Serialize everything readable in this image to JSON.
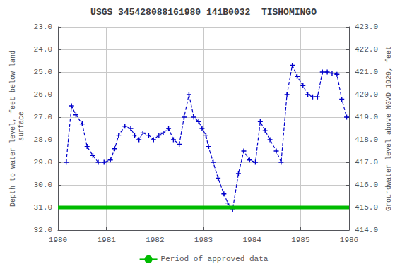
{
  "chart_data": {
    "type": "line",
    "title": "USGS 345428088161980 141B0032  TISHOMINGO",
    "y_label": "Depth to water level, feet below land\n surface",
    "y2_label": "Groundwater level above NGVD 1929, feet",
    "x": [
      1980.17,
      1980.28,
      1980.37,
      1980.5,
      1980.6,
      1980.72,
      1980.83,
      1980.95,
      1981.08,
      1981.17,
      1981.25,
      1981.38,
      1981.5,
      1981.58,
      1981.67,
      1981.75,
      1981.87,
      1981.97,
      1982.08,
      1982.17,
      1982.28,
      1982.38,
      1982.5,
      1982.6,
      1982.7,
      1982.8,
      1982.9,
      1982.97,
      1983.05,
      1983.1,
      1983.2,
      1983.3,
      1983.42,
      1983.5,
      1983.6,
      1983.72,
      1983.83,
      1983.95,
      1984.07,
      1984.17,
      1984.27,
      1984.37,
      1984.5,
      1984.6,
      1984.72,
      1984.83,
      1984.93,
      1985.05,
      1985.15,
      1985.25,
      1985.35,
      1985.45,
      1985.55,
      1985.65,
      1985.75,
      1985.85,
      1985.95
    ],
    "series": [
      {
        "color": "#0000cc",
        "line_style": "dashed",
        "marker": "plus",
        "values": [
          29.0,
          26.5,
          26.9,
          27.3,
          28.3,
          28.7,
          29.0,
          29.0,
          28.9,
          28.4,
          27.8,
          27.4,
          27.5,
          27.8,
          28.0,
          27.7,
          27.8,
          28.0,
          27.8,
          27.7,
          27.5,
          28.0,
          28.2,
          27.0,
          26.0,
          27.0,
          27.2,
          27.5,
          27.8,
          28.3,
          29.0,
          29.7,
          30.4,
          30.8,
          31.1,
          29.5,
          28.5,
          28.9,
          29.0,
          27.2,
          27.6,
          28.0,
          28.5,
          29.0,
          26.0,
          24.7,
          25.2,
          25.6,
          26.0,
          26.1,
          26.1,
          25.0,
          25.0,
          25.05,
          25.1,
          26.2,
          27.0
        ]
      },
      {
        "name": "Period of approved data",
        "color": "#00bb00",
        "line_style": "solid",
        "x": [
          1980.0,
          1986.0
        ],
        "values": [
          31.0,
          31.0
        ]
      }
    ],
    "xlim": [
      1980.0,
      1986.0
    ],
    "xticks": [
      1980,
      1981,
      1982,
      1983,
      1984,
      1985,
      1986
    ],
    "ylim": [
      32.0,
      23.0
    ],
    "yticks": [
      {
        "value": 23.0,
        "label": "23.0"
      },
      {
        "value": 24.0,
        "label": "24.0"
      },
      {
        "value": 25.0,
        "label": "25.0"
      },
      {
        "value": 26.0,
        "label": "26.0"
      },
      {
        "value": 27.0,
        "label": "27.0"
      },
      {
        "value": 28.0,
        "label": "28.0"
      },
      {
        "value": 29.0,
        "label": "29.0"
      },
      {
        "value": 30.0,
        "label": "30.0"
      },
      {
        "value": 31.0,
        "label": "31.0"
      },
      {
        "value": 32.0,
        "label": "32.0"
      }
    ],
    "y2lim": [
      414.0,
      423.0
    ],
    "y2ticks": [
      {
        "value": 414.0,
        "label": "414.0"
      },
      {
        "value": 415.0,
        "label": "415.0"
      },
      {
        "value": 416.0,
        "label": "416.0"
      },
      {
        "value": 417.0,
        "label": "417.0"
      },
      {
        "value": 418.0,
        "label": "418.0"
      },
      {
        "value": 419.0,
        "label": "419.0"
      },
      {
        "value": 420.0,
        "label": "420.0"
      },
      {
        "value": 421.0,
        "label": "421.0"
      },
      {
        "value": 422.0,
        "label": "422.0"
      },
      {
        "value": 423.0,
        "label": "423.0"
      }
    ],
    "grid": true,
    "legend": "bottom"
  }
}
